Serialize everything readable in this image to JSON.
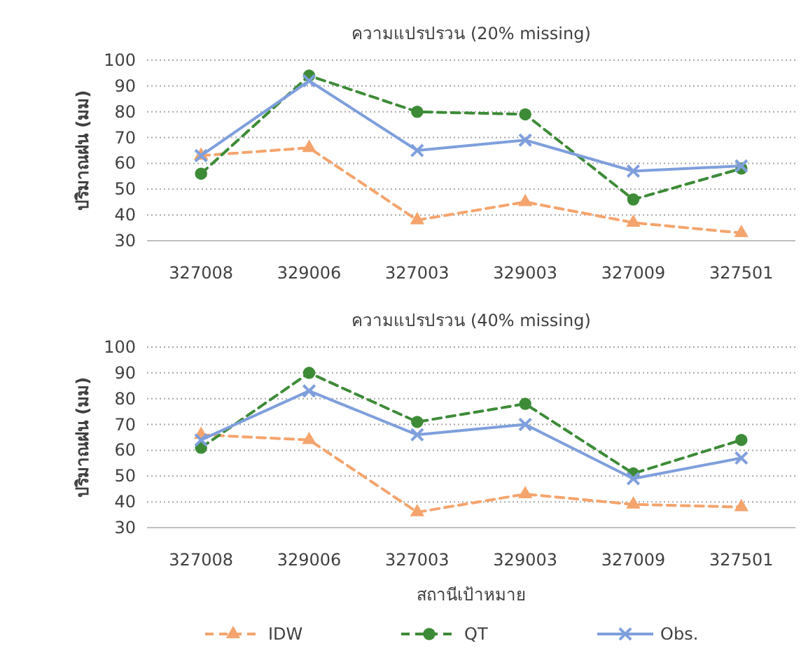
{
  "chart_data": [
    {
      "type": "line",
      "title": "ความแปรปรวน (20% missing)",
      "ylabel": "ปริมาณฝน (มม)",
      "categories": [
        "327008",
        "329006",
        "327003",
        "329003",
        "327009",
        "327501"
      ],
      "ylim": [
        30,
        100
      ],
      "yticks": [
        30,
        40,
        50,
        60,
        70,
        80,
        90,
        100
      ],
      "grid": "y",
      "legend": false,
      "series": [
        {
          "color": "#f4a46c",
          "marker": "triangle",
          "line_style": "dashed",
          "values": [
            63,
            66,
            38,
            45,
            37,
            33
          ]
        },
        {
          "color": "#3d8b37",
          "marker": "circle",
          "line_style": "dashed",
          "values": [
            56,
            94,
            80,
            79,
            46,
            58
          ]
        },
        {
          "color": "#7f9fdc",
          "marker": "cross",
          "line_style": "solid",
          "values": [
            63,
            92,
            65,
            69,
            57,
            59
          ]
        }
      ]
    },
    {
      "type": "line",
      "title": "ความแปรปรวน (40% missing)",
      "ylabel": "ปริมาณฝน (มม)",
      "xlabel": "สถานีเป้าหมาย",
      "categories": [
        "327008",
        "329006",
        "327003",
        "329003",
        "327009",
        "327501"
      ],
      "ylim": [
        30,
        100
      ],
      "yticks": [
        30,
        40,
        50,
        60,
        70,
        80,
        90,
        100
      ],
      "grid": "y",
      "legend": "bottom",
      "series": [
        {
          "name": "IDW",
          "color": "#f4a46c",
          "marker": "triangle",
          "line_style": "dashed",
          "values": [
            66,
            64,
            36,
            43,
            39,
            38
          ]
        },
        {
          "name": "QT",
          "color": "#3d8b37",
          "marker": "circle",
          "line_style": "dashed",
          "values": [
            61,
            90,
            71,
            78,
            51,
            64
          ]
        },
        {
          "name": "Obs.",
          "color": "#7f9fdc",
          "marker": "cross",
          "line_style": "solid",
          "values": [
            64,
            83,
            66,
            70,
            49,
            57
          ]
        }
      ]
    }
  ]
}
